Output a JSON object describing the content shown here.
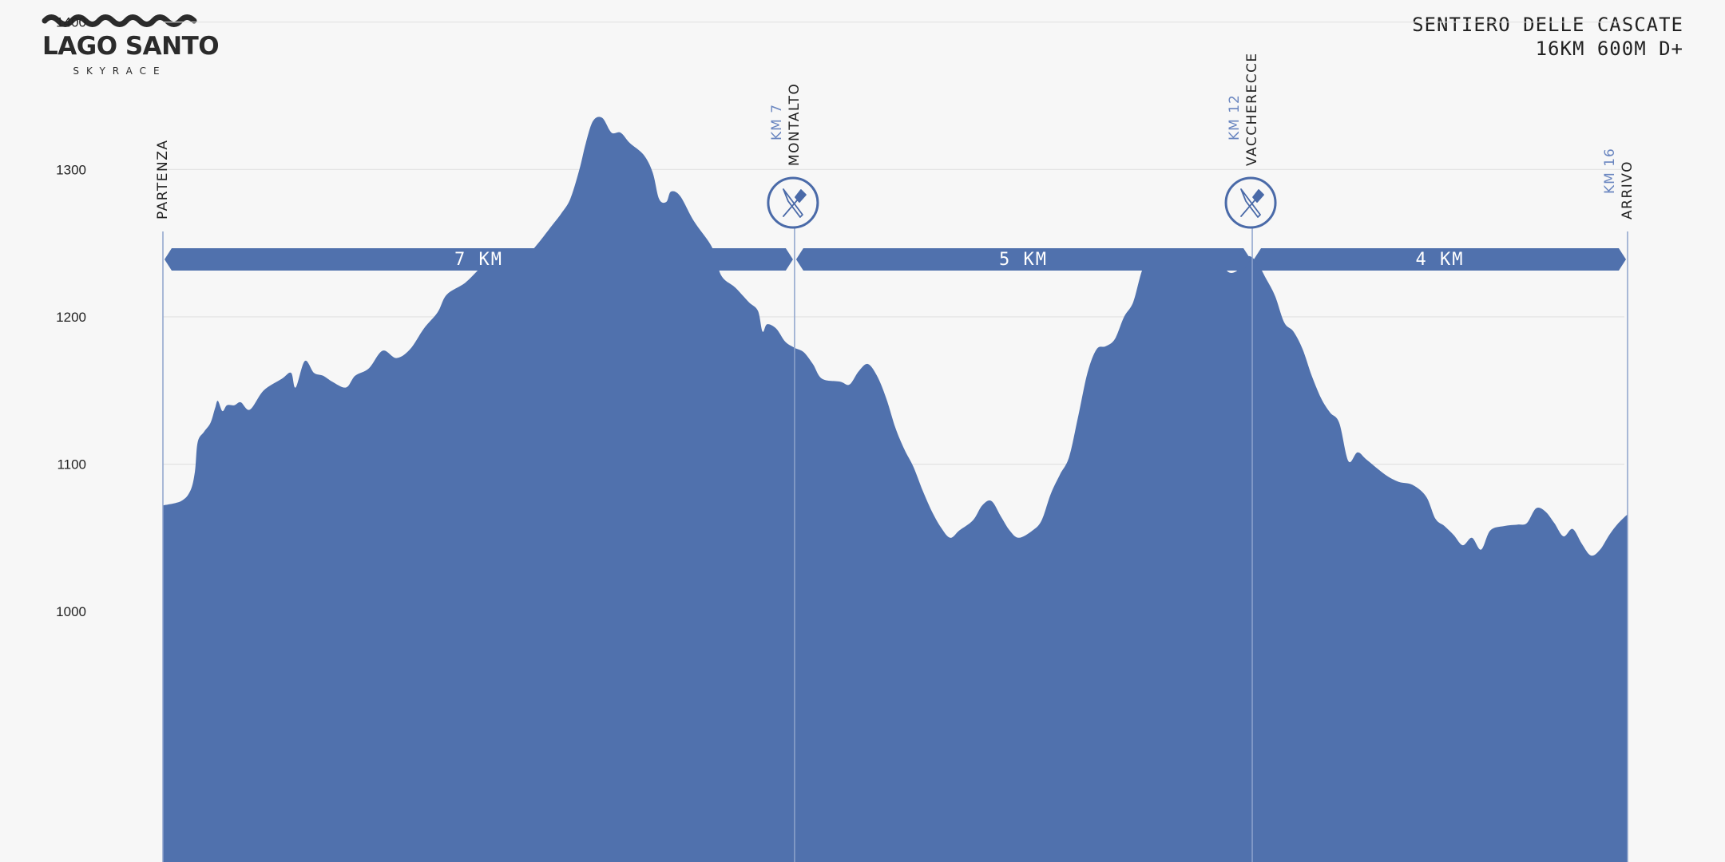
{
  "logo": {
    "title": "LAGO SANTO",
    "subtitle": "SKYRACE"
  },
  "race": {
    "name": "SENTIERO DELLE CASCATE",
    "stats": "16KM 600M D+"
  },
  "colors": {
    "profile": "#5071ad",
    "accent": "#4a6aa8",
    "km_label": "#6a86c0",
    "text": "#222222",
    "grid": "#e2e2e2",
    "background": "#f7f7f7"
  },
  "chart_data": {
    "type": "area",
    "xlim": [
      0,
      16
    ],
    "ylim": [
      830,
      1415
    ],
    "y_ticks": [
      1000,
      1100,
      1200,
      1300,
      1400
    ],
    "grid": true,
    "points": [
      [
        0,
        1072
      ],
      [
        0.2,
        1075
      ],
      [
        0.3,
        1082
      ],
      [
        0.35,
        1095
      ],
      [
        0.38,
        1115
      ],
      [
        0.45,
        1122
      ],
      [
        0.52,
        1128
      ],
      [
        0.57,
        1138
      ],
      [
        0.6,
        1143
      ],
      [
        0.65,
        1136
      ],
      [
        0.7,
        1140
      ],
      [
        0.78,
        1140
      ],
      [
        0.85,
        1142
      ],
      [
        0.95,
        1137
      ],
      [
        1.1,
        1150
      ],
      [
        1.3,
        1158
      ],
      [
        1.4,
        1162
      ],
      [
        1.45,
        1152
      ],
      [
        1.55,
        1170
      ],
      [
        1.65,
        1162
      ],
      [
        1.75,
        1160
      ],
      [
        1.85,
        1156
      ],
      [
        2.0,
        1152
      ],
      [
        2.1,
        1160
      ],
      [
        2.25,
        1165
      ],
      [
        2.4,
        1177
      ],
      [
        2.55,
        1172
      ],
      [
        2.7,
        1178
      ],
      [
        2.85,
        1192
      ],
      [
        3.0,
        1203
      ],
      [
        3.1,
        1215
      ],
      [
        3.3,
        1223
      ],
      [
        3.45,
        1232
      ],
      [
        3.6,
        1240
      ],
      [
        3.7,
        1233
      ],
      [
        3.8,
        1237
      ],
      [
        3.95,
        1240
      ],
      [
        4.1,
        1250
      ],
      [
        4.25,
        1262
      ],
      [
        4.35,
        1270
      ],
      [
        4.45,
        1280
      ],
      [
        4.55,
        1300
      ],
      [
        4.62,
        1318
      ],
      [
        4.7,
        1333
      ],
      [
        4.8,
        1335
      ],
      [
        4.9,
        1325
      ],
      [
        5.0,
        1325
      ],
      [
        5.1,
        1318
      ],
      [
        5.25,
        1310
      ],
      [
        5.35,
        1298
      ],
      [
        5.42,
        1280
      ],
      [
        5.5,
        1278
      ],
      [
        5.55,
        1285
      ],
      [
        5.65,
        1282
      ],
      [
        5.8,
        1265
      ],
      [
        6.0,
        1247
      ],
      [
        6.1,
        1228
      ],
      [
        6.25,
        1220
      ],
      [
        6.4,
        1210
      ],
      [
        6.5,
        1204
      ],
      [
        6.55,
        1190
      ],
      [
        6.6,
        1195
      ],
      [
        6.7,
        1192
      ],
      [
        6.8,
        1183
      ],
      [
        6.9,
        1179
      ],
      [
        7.0,
        1176
      ],
      [
        7.1,
        1168
      ],
      [
        7.2,
        1158
      ],
      [
        7.4,
        1156
      ],
      [
        7.5,
        1154
      ],
      [
        7.6,
        1163
      ],
      [
        7.7,
        1168
      ],
      [
        7.8,
        1160
      ],
      [
        7.9,
        1145
      ],
      [
        8.0,
        1125
      ],
      [
        8.1,
        1110
      ],
      [
        8.2,
        1098
      ],
      [
        8.3,
        1082
      ],
      [
        8.4,
        1068
      ],
      [
        8.5,
        1057
      ],
      [
        8.6,
        1050
      ],
      [
        8.7,
        1055
      ],
      [
        8.85,
        1062
      ],
      [
        8.95,
        1072
      ],
      [
        9.05,
        1075
      ],
      [
        9.15,
        1065
      ],
      [
        9.25,
        1055
      ],
      [
        9.35,
        1050
      ],
      [
        9.5,
        1055
      ],
      [
        9.6,
        1062
      ],
      [
        9.7,
        1080
      ],
      [
        9.8,
        1093
      ],
      [
        9.9,
        1105
      ],
      [
        10.0,
        1133
      ],
      [
        10.1,
        1162
      ],
      [
        10.2,
        1178
      ],
      [
        10.3,
        1180
      ],
      [
        10.4,
        1185
      ],
      [
        10.5,
        1200
      ],
      [
        10.6,
        1210
      ],
      [
        10.7,
        1232
      ],
      [
        10.8,
        1240
      ],
      [
        10.9,
        1236
      ],
      [
        11.0,
        1232
      ],
      [
        11.1,
        1240
      ],
      [
        11.2,
        1245
      ],
      [
        11.3,
        1236
      ],
      [
        11.45,
        1234
      ],
      [
        11.55,
        1236
      ],
      [
        11.65,
        1230
      ],
      [
        11.75,
        1232
      ],
      [
        11.85,
        1241
      ],
      [
        11.95,
        1237
      ],
      [
        12.05,
        1226
      ],
      [
        12.15,
        1214
      ],
      [
        12.25,
        1196
      ],
      [
        12.35,
        1190
      ],
      [
        12.45,
        1178
      ],
      [
        12.55,
        1160
      ],
      [
        12.65,
        1145
      ],
      [
        12.75,
        1135
      ],
      [
        12.85,
        1128
      ],
      [
        12.95,
        1102
      ],
      [
        13.05,
        1108
      ],
      [
        13.15,
        1103
      ],
      [
        13.35,
        1093
      ],
      [
        13.5,
        1088
      ],
      [
        13.65,
        1086
      ],
      [
        13.8,
        1078
      ],
      [
        13.9,
        1063
      ],
      [
        14.0,
        1058
      ],
      [
        14.1,
        1052
      ],
      [
        14.2,
        1045
      ],
      [
        14.3,
        1050
      ],
      [
        14.4,
        1042
      ],
      [
        14.5,
        1055
      ],
      [
        14.65,
        1058
      ],
      [
        14.8,
        1059
      ],
      [
        14.9,
        1060
      ],
      [
        15.0,
        1070
      ],
      [
        15.1,
        1068
      ],
      [
        15.2,
        1060
      ],
      [
        15.3,
        1051
      ],
      [
        15.4,
        1056
      ],
      [
        15.5,
        1046
      ],
      [
        15.6,
        1038
      ],
      [
        15.7,
        1042
      ],
      [
        15.8,
        1052
      ],
      [
        15.9,
        1060
      ],
      [
        16.0,
        1066
      ]
    ],
    "waypoints": [
      {
        "km_label": "",
        "name": "PARTENZA",
        "km": 0,
        "station": false
      },
      {
        "km_label": "KM 7",
        "name": "MONTALTO",
        "km": 6.9,
        "station": true
      },
      {
        "km_label": "KM 12",
        "name": "VACCHERECCE",
        "km": 11.9,
        "station": true
      },
      {
        "km_label": "KM 16",
        "name": "ARRIVO",
        "km": 16,
        "station": false
      }
    ],
    "segments": [
      {
        "label": "7 KM",
        "from_km": 0,
        "to_km": 6.9
      },
      {
        "label": "5 KM",
        "from_km": 6.9,
        "to_km": 11.9
      },
      {
        "label": "4 KM",
        "from_km": 11.9,
        "to_km": 16
      }
    ]
  }
}
